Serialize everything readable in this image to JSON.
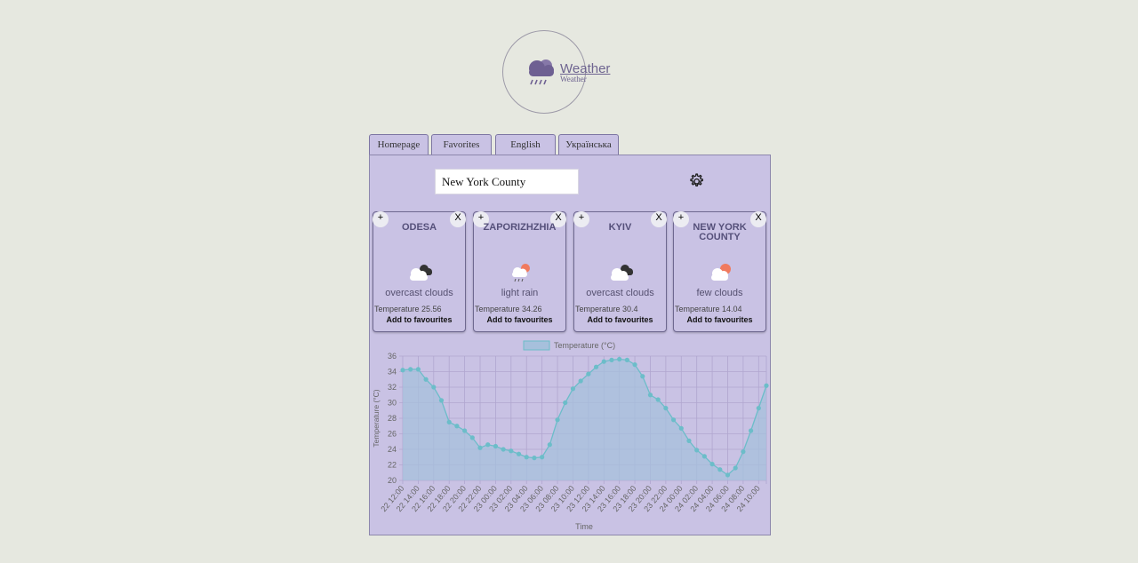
{
  "logo": {
    "title": "Weather",
    "subtitle": "Weather"
  },
  "tabs": [
    {
      "label": "Homepage"
    },
    {
      "label": "Favorites"
    },
    {
      "label": "English"
    },
    {
      "label": "Українська"
    }
  ],
  "search": {
    "value": "New York County"
  },
  "cards": [
    {
      "city": "ODESA",
      "icon": "overcast-clouds-icon",
      "description": "overcast clouds",
      "temperature": "Temperature 25.56",
      "add_label": "Add to favourites",
      "plus_label": "+",
      "close_label": "X"
    },
    {
      "city": "ZAPORIZHZHIA",
      "icon": "light-rain-icon",
      "description": "light rain",
      "temperature": "Temperature 34.26",
      "add_label": "Add to favourites",
      "plus_label": "+",
      "close_label": "X"
    },
    {
      "city": "KYIV",
      "icon": "overcast-clouds-icon",
      "description": "overcast clouds",
      "temperature": "Temperature 30.4",
      "add_label": "Add to favourites",
      "plus_label": "+",
      "close_label": "X"
    },
    {
      "city": "NEW YORK COUNTY",
      "icon": "few-clouds-icon",
      "description": "few clouds",
      "temperature": "Temperature 14.04",
      "add_label": "Add to favourites",
      "plus_label": "+",
      "close_label": "X"
    }
  ],
  "chart_data": {
    "type": "area",
    "legend": "Temperature (°C)",
    "xlabel": "Time",
    "ylabel": "Temperature (°C)",
    "ylim": [
      20,
      36
    ],
    "yticks": [
      20,
      22,
      24,
      26,
      28,
      30,
      32,
      34,
      36
    ],
    "grid": true,
    "colors": {
      "line": "#6cbdc9",
      "fill": "#a6c0dc",
      "grid": "#b0a6cf"
    },
    "xticks": [
      "22 12:00",
      "22 14:00",
      "22 16:00",
      "22 18:00",
      "22 20:00",
      "22 22:00",
      "23 00:00",
      "23 02:00",
      "23 04:00",
      "23 06:00",
      "23 08:00",
      "23 10:00",
      "23 12:00",
      "23 14:00",
      "23 16:00",
      "23 18:00",
      "23 20:00",
      "23 22:00",
      "24 00:00",
      "24 02:00",
      "24 04:00",
      "24 06:00",
      "24 08:00",
      "24 10:00"
    ],
    "values": [
      34.2,
      34.3,
      34.3,
      33.0,
      32.0,
      30.3,
      27.5,
      27.0,
      26.4,
      25.5,
      24.2,
      24.6,
      24.4,
      24.0,
      23.8,
      23.4,
      23.0,
      22.9,
      23.0,
      24.6,
      27.8,
      30.0,
      31.8,
      32.8,
      33.7,
      34.6,
      35.3,
      35.5,
      35.6,
      35.5,
      34.9,
      33.4,
      31.0,
      30.4,
      29.3,
      27.8,
      26.7,
      25.1,
      23.9,
      23.1,
      22.1,
      21.4,
      20.7,
      21.6,
      23.7,
      26.4,
      29.3,
      32.2
    ]
  }
}
